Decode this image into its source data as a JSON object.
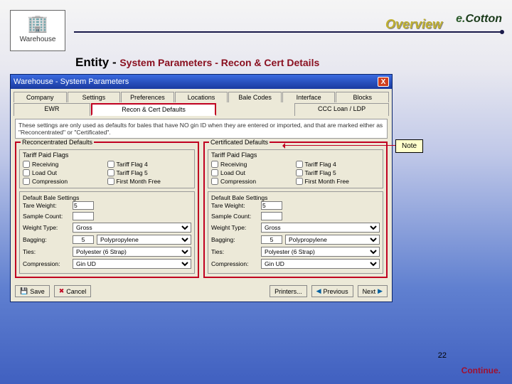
{
  "header": {
    "warehouse_label": "Warehouse",
    "overview": "Overview",
    "brand_prefix": "e.",
    "brand_name": "Cotton",
    "title_main": "Entity",
    "title_sep": " - ",
    "title_sub": "System Parameters - Recon & Cert Details"
  },
  "window": {
    "title": "Warehouse - System Parameters",
    "tabs_row1": [
      "Company",
      "Settings",
      "Preferences",
      "Locations",
      "Bale Codes",
      "Interface",
      "Blocks"
    ],
    "tabs_row2": [
      "EWR",
      "Recon & Cert Defaults",
      "",
      "CCC Loan / LDP"
    ],
    "active_tab": "Recon & Cert Defaults",
    "note_text": "These settings are only used as defaults for bales that have NO gin ID when they are entered or imported, and that are marked either as \"Reconcentrated\" or \"Certificated\"."
  },
  "panels": {
    "left": {
      "group_title": "Reconcentrated Defaults",
      "flags_title": "Tariff Paid Flags",
      "flags": [
        [
          "Receiving",
          "Tariff Flag 4"
        ],
        [
          "Load Out",
          "Tariff Flag 5"
        ],
        [
          "Compression",
          "First Month Free"
        ]
      ],
      "settings_title": "Default Bale Settings",
      "tare_label": "Tare Weight:",
      "tare_value": "5",
      "sample_label": "Sample Count:",
      "sample_value": "",
      "weight_label": "Weight Type:",
      "weight_value": "Gross",
      "bagging_label": "Bagging:",
      "bagging_num": "5",
      "bagging_value": "Polypropylene",
      "ties_label": "Ties:",
      "ties_value": "Polyester (6 Strap)",
      "comp_label": "Compression:",
      "comp_value": "Gin UD"
    },
    "right": {
      "group_title": "Certificated Defaults",
      "flags_title": "Tariff Paid Flags",
      "flags": [
        [
          "Receiving",
          "Tariff Flag 4"
        ],
        [
          "Load Out",
          "Tariff Flag 5"
        ],
        [
          "Compression",
          "First Month Free"
        ]
      ],
      "settings_title": "Default Bale Settings",
      "tare_label": "Tare Weight:",
      "tare_value": "5",
      "sample_label": "Sample Count:",
      "sample_value": "",
      "weight_label": "Weight Type:",
      "weight_value": "Gross",
      "bagging_label": "Bagging:",
      "bagging_num": "5",
      "bagging_value": "Polypropylene",
      "ties_label": "Ties:",
      "ties_value": "Polyester (6 Strap)",
      "comp_label": "Compression:",
      "comp_value": "Gin UD"
    }
  },
  "buttons": {
    "save": "Save",
    "cancel": "Cancel",
    "printers": "Printers...",
    "previous": "Previous",
    "next": "Next"
  },
  "callout": {
    "label": "Note"
  },
  "footer": {
    "page": "22",
    "continue": "Continue."
  }
}
